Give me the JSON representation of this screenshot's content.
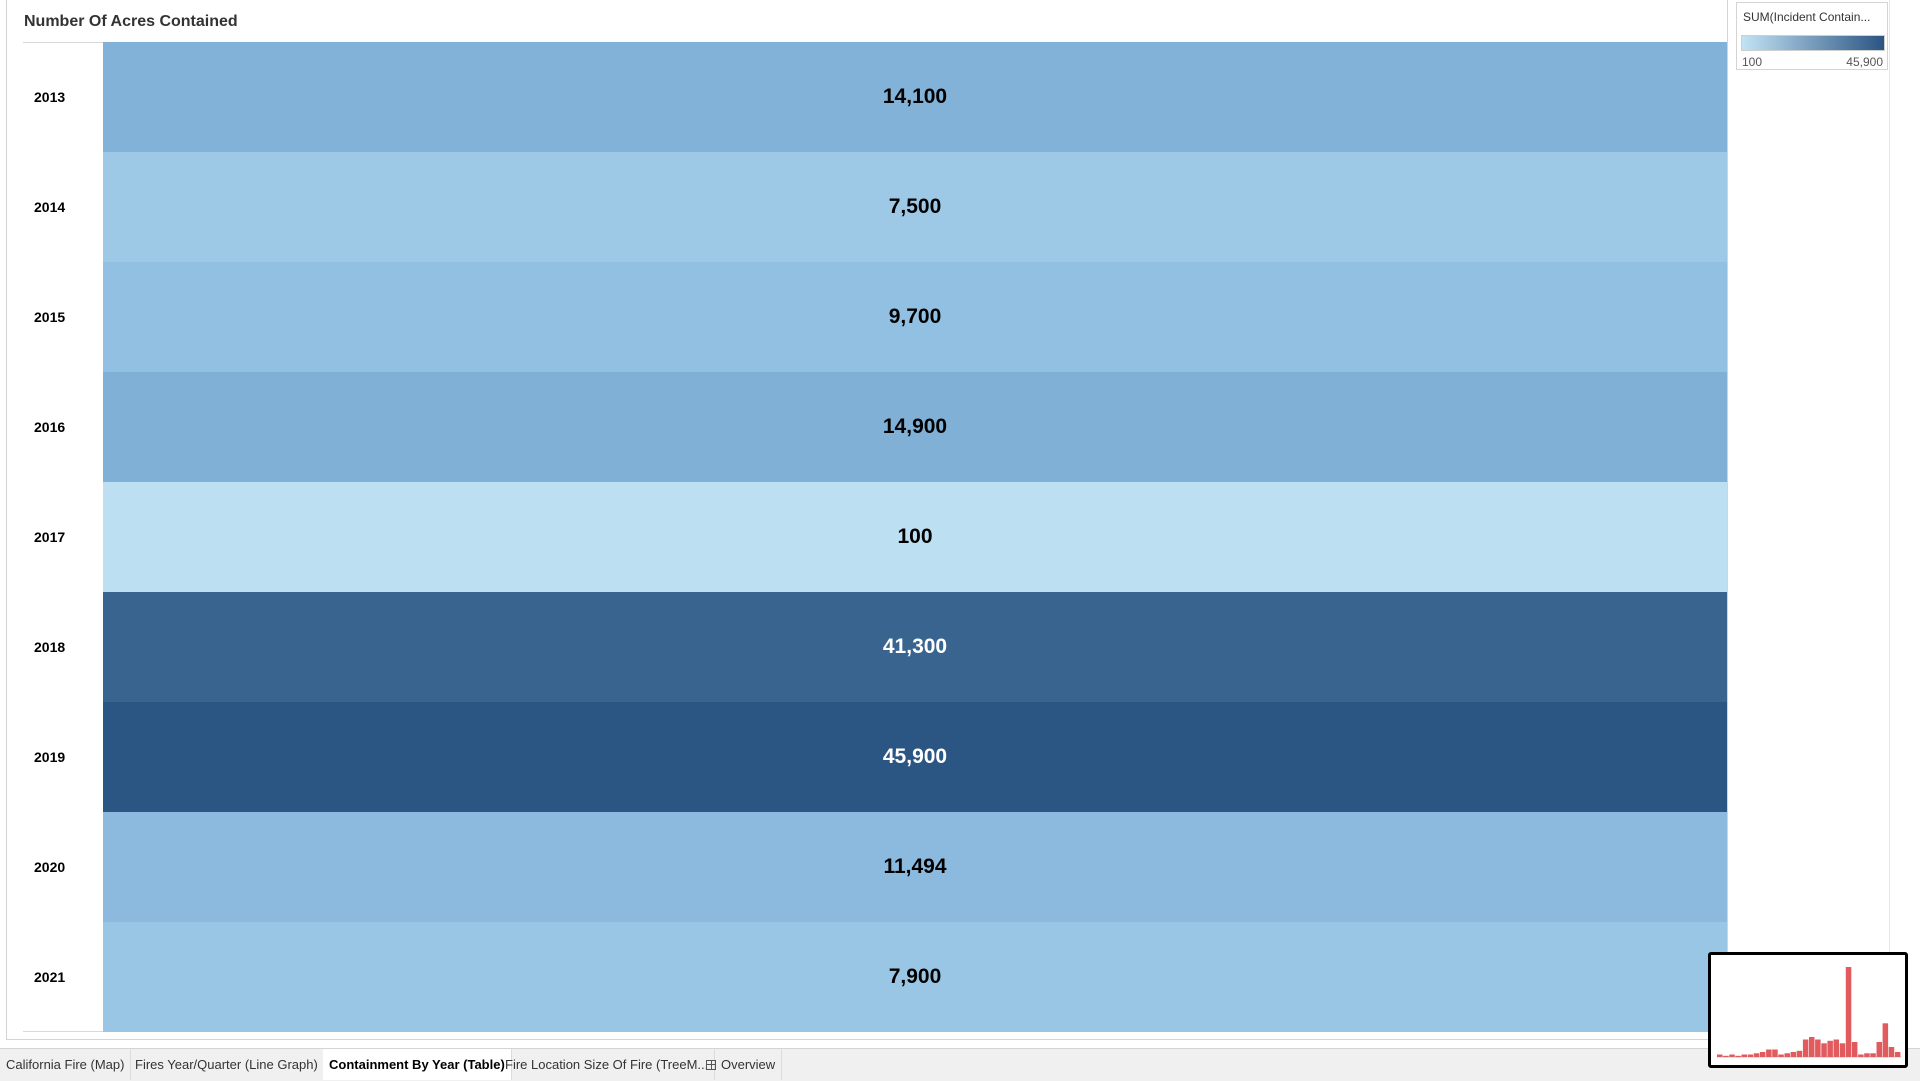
{
  "sheet": {
    "title": "Number Of Acres Contained"
  },
  "legend": {
    "title": "SUM(Incident Contain...",
    "min_label": "100",
    "max_label": "45,900",
    "color_low": "#c2e3f4",
    "color_high": "#2b5582"
  },
  "table": {
    "rows": [
      {
        "year": "2013",
        "value": 14100,
        "label": "14,100",
        "color": "#82b2d7",
        "text_color": "#000000"
      },
      {
        "year": "2014",
        "value": 7500,
        "label": "7,500",
        "color": "#9dc9e7",
        "text_color": "#000000"
      },
      {
        "year": "2015",
        "value": 9700,
        "label": "9,700",
        "color": "#92c0e2",
        "text_color": "#000000"
      },
      {
        "year": "2016",
        "value": 14900,
        "label": "14,900",
        "color": "#80b0d6",
        "text_color": "#000000"
      },
      {
        "year": "2017",
        "value": 100,
        "label": "100",
        "color": "#bcdff2",
        "text_color": "#000000"
      },
      {
        "year": "2018",
        "value": 41300,
        "label": "41,300",
        "color": "#38648f",
        "text_color": "#ffffff"
      },
      {
        "year": "2019",
        "value": 45900,
        "label": "45,900",
        "color": "#2b5582",
        "text_color": "#ffffff"
      },
      {
        "year": "2020",
        "value": 11494,
        "label": "11,494",
        "color": "#8cbadf",
        "text_color": "#000000"
      },
      {
        "year": "2021",
        "value": 7900,
        "label": "7,900",
        "color": "#9ac6e5",
        "text_color": "#000000"
      }
    ]
  },
  "tabs": [
    {
      "label": "California Fire (Map)",
      "active": false
    },
    {
      "label": "Fires Year/Quarter (Line Graph)",
      "active": false
    },
    {
      "label": "Containment By Year (Table)",
      "active": true
    },
    {
      "label": "Fire Location Size Of Fire (TreeM...",
      "active": false
    },
    {
      "label": "Overview",
      "active": false,
      "icon": "grid-icon"
    }
  ],
  "thumbnail": {
    "bar_color": "#e05a5e",
    "bars": [
      2,
      1,
      2,
      1,
      2,
      2,
      3,
      4,
      6,
      6,
      2,
      3,
      4,
      5,
      14,
      16,
      14,
      11,
      13,
      14,
      11,
      72,
      12,
      2,
      3,
      3,
      12,
      27,
      8,
      4
    ]
  }
}
